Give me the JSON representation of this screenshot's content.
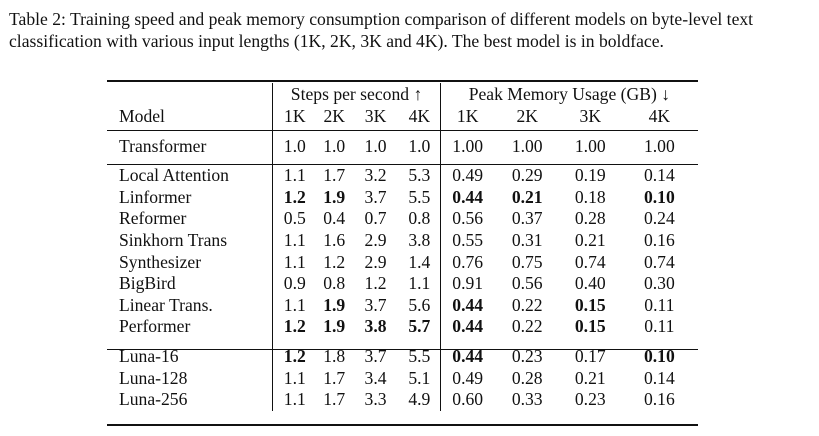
{
  "caption": "Table 2: Training speed and peak memory consumption comparison of different models on byte-level text classification with various input lengths (1K, 2K, 3K and 4K). The best model is in boldface.",
  "header": {
    "model_label": "Model",
    "speed_group": "Steps per second ↑",
    "memory_group": "Peak Memory Usage (GB) ↓",
    "lengths": [
      "1K",
      "2K",
      "3K",
      "4K"
    ]
  },
  "rows": [
    {
      "model": "Transformer",
      "speed": [
        "1.0",
        "1.0",
        "1.0",
        "1.0"
      ],
      "memory": [
        "1.00",
        "1.00",
        "1.00",
        "1.00"
      ]
    },
    {
      "model": "Local Attention",
      "speed": [
        "1.1",
        "1.7",
        "3.2",
        "5.3"
      ],
      "memory": [
        "0.49",
        "0.29",
        "0.19",
        "0.14"
      ]
    },
    {
      "model": "Linformer",
      "speed": [
        "1.2",
        "1.9",
        "3.7",
        "5.5"
      ],
      "memory": [
        "0.44",
        "0.21",
        "0.18",
        "0.10"
      ]
    },
    {
      "model": "Reformer",
      "speed": [
        "0.5",
        "0.4",
        "0.7",
        "0.8"
      ],
      "memory": [
        "0.56",
        "0.37",
        "0.28",
        "0.24"
      ]
    },
    {
      "model": "Sinkhorn Trans",
      "speed": [
        "1.1",
        "1.6",
        "2.9",
        "3.8"
      ],
      "memory": [
        "0.55",
        "0.31",
        "0.21",
        "0.16"
      ]
    },
    {
      "model": "Synthesizer",
      "speed": [
        "1.1",
        "1.2",
        "2.9",
        "1.4"
      ],
      "memory": [
        "0.76",
        "0.75",
        "0.74",
        "0.74"
      ]
    },
    {
      "model": "BigBird",
      "speed": [
        "0.9",
        "0.8",
        "1.2",
        "1.1"
      ],
      "memory": [
        "0.91",
        "0.56",
        "0.40",
        "0.30"
      ]
    },
    {
      "model": "Linear Trans.",
      "speed": [
        "1.1",
        "1.9",
        "3.7",
        "5.6"
      ],
      "memory": [
        "0.44",
        "0.22",
        "0.15",
        "0.11"
      ]
    },
    {
      "model": "Performer",
      "speed": [
        "1.2",
        "1.9",
        "3.8",
        "5.7"
      ],
      "memory": [
        "0.44",
        "0.22",
        "0.15",
        "0.11"
      ]
    },
    {
      "model": "Luna-16",
      "speed": [
        "1.2",
        "1.8",
        "3.7",
        "5.5"
      ],
      "memory": [
        "0.44",
        "0.23",
        "0.17",
        "0.10"
      ]
    },
    {
      "model": "Luna-128",
      "speed": [
        "1.1",
        "1.7",
        "3.4",
        "5.1"
      ],
      "memory": [
        "0.49",
        "0.28",
        "0.21",
        "0.14"
      ]
    },
    {
      "model": "Luna-256",
      "speed": [
        "1.1",
        "1.7",
        "3.3",
        "4.9"
      ],
      "memory": [
        "0.60",
        "0.33",
        "0.23",
        "0.16"
      ]
    }
  ]
}
